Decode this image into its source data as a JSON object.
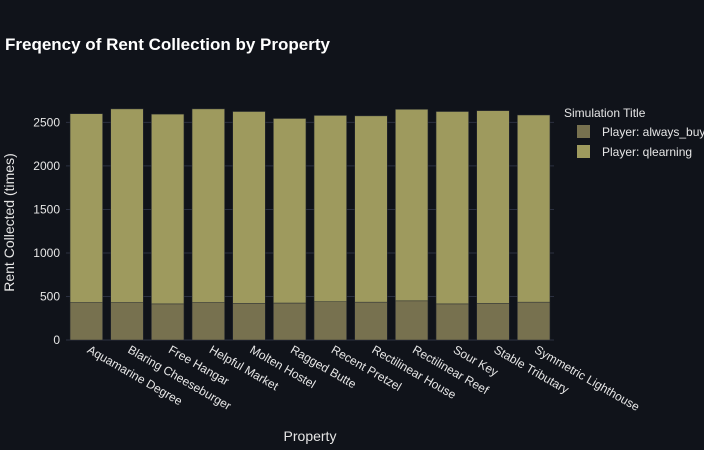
{
  "chart_data": {
    "type": "bar",
    "barmode": "stack",
    "title": "Freqency of Rent Collection by Property",
    "xlabel": "Property",
    "ylabel": "Rent Collected (times)",
    "ylim": [
      0,
      2700
    ],
    "yticks": [
      0,
      500,
      1000,
      1500,
      2000,
      2500
    ],
    "grid": true,
    "legend_title": "Simulation Title",
    "legend_position": "top-right",
    "categories": [
      "Aquamarine Degree",
      "Blaring Cheeseburger",
      "Free Hangar",
      "Helpful Market",
      "Molten Hostel",
      "Ragged Butte",
      "Recent Pretzel",
      "Rectilinear House",
      "Rectilinear Reef",
      "Sour Key",
      "Stable Tributary",
      "Symmetric Lighthouse"
    ],
    "series": [
      {
        "name": "Player: always_buy",
        "color": "#77714f",
        "values": [
          430,
          430,
          415,
          430,
          420,
          425,
          440,
          435,
          450,
          415,
          420,
          435
        ]
      },
      {
        "name": "Player: qlearning",
        "color": "#9e9a5e",
        "values": [
          2170,
          2225,
          2180,
          2225,
          2205,
          2120,
          2140,
          2140,
          2200,
          2210,
          2215,
          2150
        ]
      }
    ]
  }
}
